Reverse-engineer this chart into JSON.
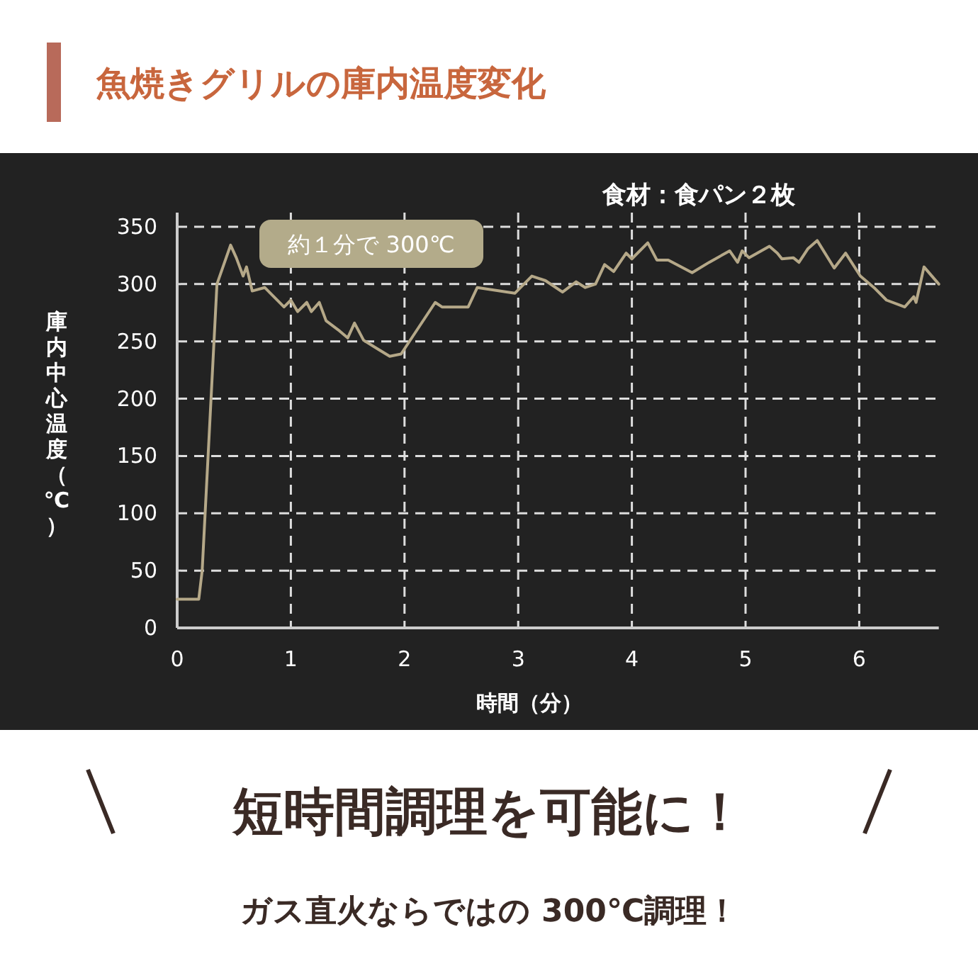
{
  "chart_data": {
    "type": "line",
    "title": "魚焼きグリルの庫内温度変化",
    "xlabel": "時間（分）",
    "ylabel": "庫内中心温度（℃）",
    "annotations": [
      "食材：食パン２枚",
      "約１分で 300℃",
      "短時間調理を可能に！",
      "ガス直火ならではの 300℃調理！"
    ],
    "x": [
      0,
      0.19,
      0.22,
      0.35,
      0.47,
      0.52,
      0.58,
      0.61,
      0.66,
      0.77,
      0.83,
      0.94,
      1.0,
      1.06,
      1.14,
      1.18,
      1.25,
      1.31,
      1.43,
      1.5,
      1.56,
      1.64,
      1.77,
      1.87,
      1.97,
      2.27,
      2.33,
      2.56,
      2.64,
      2.97,
      3.12,
      3.24,
      3.39,
      3.51,
      3.59,
      3.68,
      3.76,
      3.84,
      3.95,
      4.0,
      4.14,
      4.22,
      4.32,
      4.53,
      4.68,
      4.86,
      4.93,
      4.97,
      5.03,
      5.21,
      5.28,
      5.32,
      5.42,
      5.47,
      5.55,
      5.63,
      5.78,
      5.88,
      6.01,
      6.14,
      6.24,
      6.4,
      6.48,
      6.5,
      6.57,
      6.7
    ],
    "series": [
      {
        "color": "#b5a888",
        "values": [
          25,
          25,
          50,
          300,
          334,
          323,
          307,
          315,
          294,
          297,
          291,
          280,
          286,
          276,
          284,
          276,
          284,
          268,
          259,
          253,
          266,
          251,
          243,
          237,
          239,
          284,
          280,
          280,
          297,
          292,
          307,
          303,
          293,
          302,
          297,
          300,
          317,
          311,
          327,
          322,
          336,
          321,
          321,
          310,
          319,
          329,
          319,
          329,
          323,
          333,
          327,
          322,
          323,
          319,
          331,
          338,
          314,
          327,
          307,
          296,
          286,
          280,
          289,
          284,
          315,
          300
        ]
      }
    ],
    "xlim": [
      0,
      6.7
    ],
    "ylim": [
      0,
      350
    ],
    "xticks": [
      0,
      1,
      2,
      3,
      4,
      5,
      6
    ],
    "yticks": [
      0,
      50,
      100,
      150,
      200,
      250,
      300,
      350
    ],
    "grid": true,
    "line_style": "solid",
    "marker": "none"
  }
}
